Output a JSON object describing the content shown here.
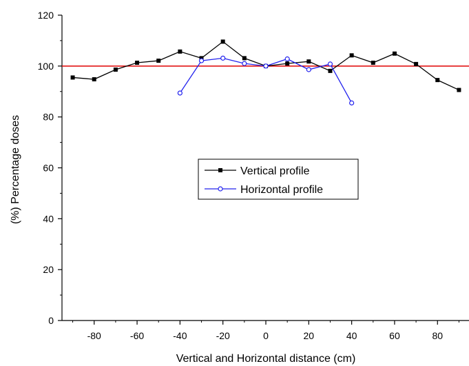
{
  "chart_data": {
    "type": "line",
    "xlabel": "Vertical and Horizontal distance (cm)",
    "ylabel": "(%) Percentage doses",
    "xlim": [
      -95,
      95
    ],
    "ylim": [
      0,
      120
    ],
    "xticks": [
      -80,
      -60,
      -40,
      -20,
      0,
      20,
      40,
      60,
      80
    ],
    "yticks": [
      0,
      20,
      40,
      60,
      80,
      100,
      120
    ],
    "grid": false,
    "legend_position": "center",
    "reference_line": {
      "y": 100,
      "color": "#e00000"
    },
    "series": [
      {
        "name": "Vertical profile",
        "color": "#000000",
        "marker": "filled-square",
        "x": [
          -90,
          -80,
          -70,
          -60,
          -50,
          -40,
          -30,
          -20,
          -10,
          0,
          10,
          20,
          30,
          40,
          50,
          60,
          70,
          80,
          90
        ],
        "y": [
          95.5,
          94.8,
          98.6,
          101.3,
          102.1,
          105.7,
          103.1,
          109.6,
          103.1,
          100.0,
          101.0,
          101.8,
          98.1,
          104.2,
          101.3,
          104.9,
          100.8,
          94.5,
          90.6
        ]
      },
      {
        "name": "Horizontal profile",
        "color": "#2222ee",
        "marker": "open-circle",
        "x": [
          -40,
          -30,
          -20,
          -10,
          0,
          10,
          20,
          30,
          40
        ],
        "y": [
          89.4,
          102.1,
          103.1,
          101.0,
          100.0,
          102.8,
          98.6,
          100.8,
          85.5
        ]
      }
    ]
  }
}
